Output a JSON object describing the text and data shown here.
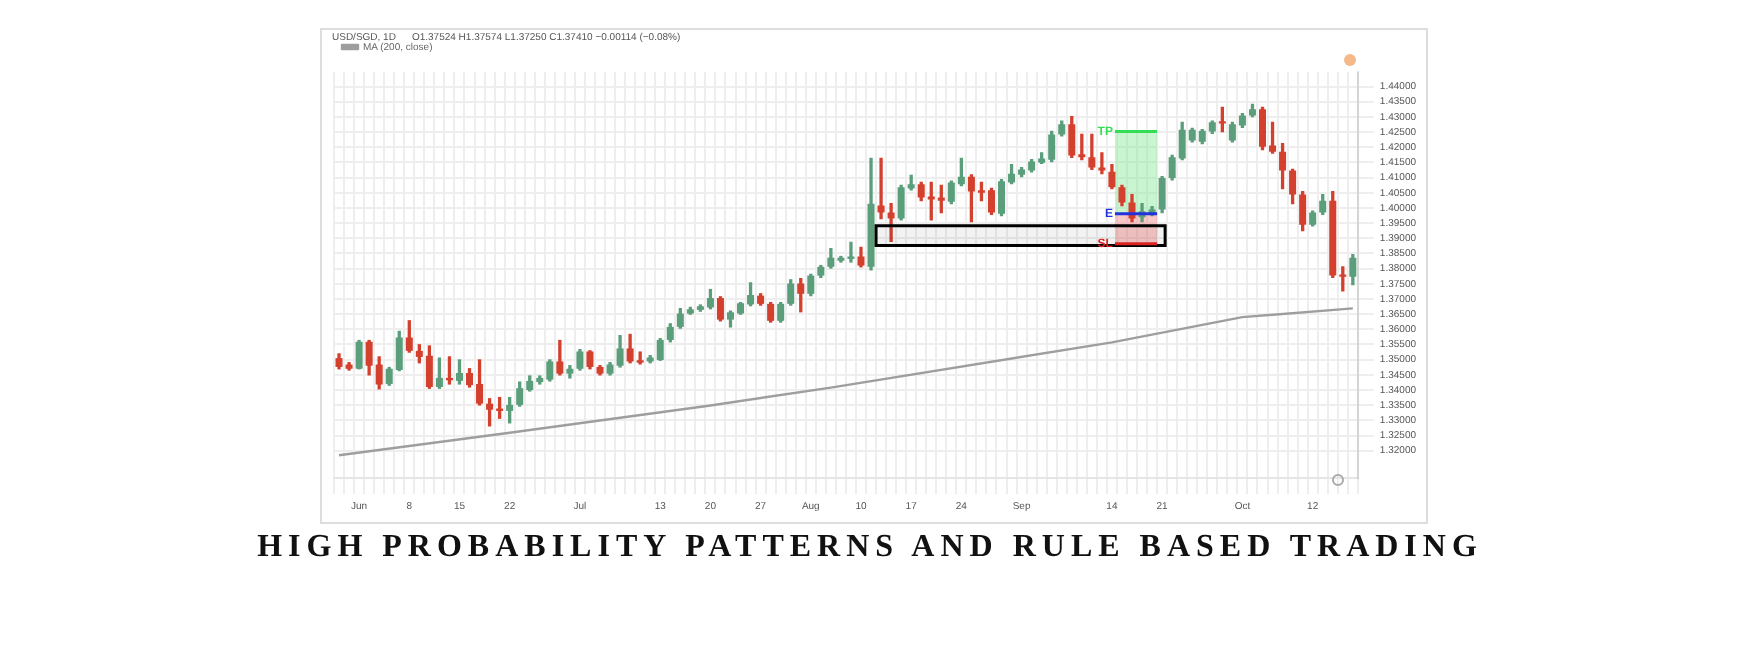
{
  "chart_data": {
    "type": "candlestick",
    "title": "HIGH PROBABILITY PATTERNS AND RULE BASED TRADING",
    "categories": [
      null,
      null,
      "Jun",
      null,
      null,
      null,
      null,
      "8",
      null,
      null,
      null,
      null,
      "15",
      null,
      null,
      null,
      null,
      "22",
      null,
      null,
      null,
      null,
      null,
      null,
      "Jul",
      null,
      null,
      null,
      null,
      null,
      null,
      null,
      "13",
      null,
      null,
      null,
      null,
      "20",
      null,
      null,
      null,
      null,
      "27",
      null,
      null,
      null,
      null,
      "Aug",
      null,
      null,
      null,
      null,
      "10",
      null,
      null,
      null,
      null,
      "17",
      null,
      null,
      null,
      null,
      "24",
      null,
      null,
      null,
      null,
      null,
      "Sep",
      null,
      null,
      null,
      null,
      null,
      null,
      null,
      null,
      "14",
      null,
      null,
      null,
      null,
      "21",
      null,
      null,
      null,
      null,
      null,
      null,
      null,
      "Oct",
      null,
      null,
      null,
      null,
      null,
      null,
      "12",
      null,
      null,
      null,
      null
    ],
    "ohlc": [
      [
        1.3505,
        1.3519,
        1.347,
        1.3476
      ],
      [
        1.3484,
        1.349,
        1.3466,
        1.347
      ],
      [
        1.347,
        1.3563,
        1.347,
        1.3559
      ],
      [
        1.3559,
        1.3563,
        1.345,
        1.348
      ],
      [
        1.3484,
        1.3509,
        1.3404,
        1.3418
      ],
      [
        1.342,
        1.3474,
        1.3416,
        1.347
      ],
      [
        1.3466,
        1.3593,
        1.3464,
        1.3573
      ],
      [
        1.3573,
        1.3628,
        1.3525,
        1.3529
      ],
      [
        1.3529,
        1.3549,
        1.349,
        1.3509
      ],
      [
        1.3513,
        1.3545,
        1.3406,
        1.341
      ],
      [
        1.341,
        1.3505,
        1.3406,
        1.344
      ],
      [
        1.344,
        1.3509,
        1.342,
        1.3432
      ],
      [
        1.343,
        1.3499,
        1.342,
        1.3456
      ],
      [
        1.3456,
        1.347,
        1.341,
        1.3416
      ],
      [
        1.342,
        1.3499,
        1.3351,
        1.3355
      ],
      [
        1.3355,
        1.3371,
        1.3282,
        1.3335
      ],
      [
        1.3339,
        1.3375,
        1.3307,
        1.3331
      ],
      [
        1.3331,
        1.3375,
        1.3292,
        1.3351
      ],
      [
        1.3351,
        1.3426,
        1.3347,
        1.3406
      ],
      [
        1.34,
        1.3446,
        1.3397,
        1.343
      ],
      [
        1.3426,
        1.3446,
        1.342,
        1.344
      ],
      [
        1.3434,
        1.3499,
        1.343,
        1.3494
      ],
      [
        1.3494,
        1.3563,
        1.345,
        1.3454
      ],
      [
        1.3454,
        1.348,
        1.344,
        1.347
      ],
      [
        1.347,
        1.3533,
        1.3466,
        1.3527
      ],
      [
        1.3527,
        1.3529,
        1.347,
        1.3476
      ],
      [
        1.3476,
        1.348,
        1.345,
        1.3454
      ],
      [
        1.3454,
        1.349,
        1.345,
        1.3484
      ],
      [
        1.348,
        1.3579,
        1.3476,
        1.3537
      ],
      [
        1.3537,
        1.3583,
        1.349,
        1.3494
      ],
      [
        1.3498,
        1.3525,
        1.3486,
        1.349
      ],
      [
        1.3494,
        1.3513,
        1.349,
        1.3507
      ],
      [
        1.3499,
        1.3569,
        1.3498,
        1.3565
      ],
      [
        1.3565,
        1.3618,
        1.3559,
        1.3608
      ],
      [
        1.3608,
        1.3668,
        1.3604,
        1.3652
      ],
      [
        1.3652,
        1.3672,
        1.365,
        1.3666
      ],
      [
        1.3664,
        1.368,
        1.366,
        1.3676
      ],
      [
        1.3672,
        1.3731,
        1.3668,
        1.3703
      ],
      [
        1.3703,
        1.3707,
        1.3628,
        1.3632
      ],
      [
        1.3632,
        1.366,
        1.3608,
        1.3656
      ],
      [
        1.3652,
        1.3688,
        1.365,
        1.3686
      ],
      [
        1.3682,
        1.3753,
        1.3678,
        1.3713
      ],
      [
        1.3711,
        1.3717,
        1.368,
        1.3684
      ],
      [
        1.3684,
        1.3688,
        1.3624,
        1.3628
      ],
      [
        1.3628,
        1.3688,
        1.3624,
        1.3684
      ],
      [
        1.3684,
        1.3763,
        1.368,
        1.3751
      ],
      [
        1.3751,
        1.3767,
        1.3658,
        1.3717
      ],
      [
        1.3717,
        1.3781,
        1.3711,
        1.3777
      ],
      [
        1.3777,
        1.381,
        1.3771,
        1.3806
      ],
      [
        1.3806,
        1.3866,
        1.3802,
        1.3836
      ],
      [
        1.3826,
        1.384,
        1.3822,
        1.3836
      ],
      [
        1.3832,
        1.3886,
        1.3822,
        1.384
      ],
      [
        1.384,
        1.387,
        1.3806,
        1.381
      ],
      [
        1.3806,
        1.4163,
        1.3796,
        1.4014
      ],
      [
        1.4008,
        1.4163,
        1.3965,
        1.3985
      ],
      [
        1.3985,
        1.4014,
        1.389,
        1.3965
      ],
      [
        1.3965,
        1.4074,
        1.3961,
        1.4068
      ],
      [
        1.4064,
        1.4107,
        1.406,
        1.4078
      ],
      [
        1.4078,
        1.4084,
        1.4024,
        1.4034
      ],
      [
        1.4038,
        1.4084,
        1.3961,
        1.4028
      ],
      [
        1.4034,
        1.4074,
        1.3985,
        1.4024
      ],
      [
        1.402,
        1.4088,
        1.4014,
        1.4084
      ],
      [
        1.4078,
        1.4163,
        1.4074,
        1.4103
      ],
      [
        1.4103,
        1.4109,
        1.3955,
        1.4054
      ],
      [
        1.4058,
        1.4084,
        1.4024,
        1.405
      ],
      [
        1.4058,
        1.4064,
        1.3979,
        1.3985
      ],
      [
        1.3981,
        1.4093,
        1.3975,
        1.4088
      ],
      [
        1.4084,
        1.4143,
        1.408,
        1.4113
      ],
      [
        1.4109,
        1.4133,
        1.4103,
        1.4127
      ],
      [
        1.4123,
        1.4159,
        1.4119,
        1.4153
      ],
      [
        1.4149,
        1.4181,
        1.4147,
        1.4163
      ],
      [
        1.4159,
        1.4252,
        1.4153,
        1.4242
      ],
      [
        1.4242,
        1.4286,
        1.4238,
        1.4276
      ],
      [
        1.4276,
        1.4301,
        1.4167,
        1.4173
      ],
      [
        1.4177,
        1.4242,
        1.4159,
        1.4167
      ],
      [
        1.4167,
        1.4242,
        1.4127,
        1.4133
      ],
      [
        1.4133,
        1.4181,
        1.4113,
        1.4123
      ],
      [
        1.4119,
        1.4143,
        1.4064,
        1.4068
      ],
      [
        1.4068,
        1.4074,
        1.4008,
        1.4018
      ],
      [
        1.4018,
        1.4044,
        1.3955,
        1.3965
      ],
      [
        1.3969,
        1.4014,
        1.3955,
        1.3989
      ],
      [
        1.3981,
        1.4004,
        1.3975,
        1.3995
      ],
      [
        1.3995,
        1.4103,
        1.3985,
        1.4099
      ],
      [
        1.4099,
        1.4173,
        1.4093,
        1.4167
      ],
      [
        1.4163,
        1.4282,
        1.4159,
        1.4258
      ],
      [
        1.4222,
        1.4262,
        1.4218,
        1.4258
      ],
      [
        1.4218,
        1.4258,
        1.4212,
        1.4254
      ],
      [
        1.4252,
        1.4286,
        1.4246,
        1.4282
      ],
      [
        1.4286,
        1.4331,
        1.4252,
        1.4278
      ],
      [
        1.4222,
        1.4282,
        1.4218,
        1.4276
      ],
      [
        1.4272,
        1.4311,
        1.4266,
        1.4305
      ],
      [
        1.4305,
        1.4341,
        1.4301,
        1.4325
      ],
      [
        1.4325,
        1.4331,
        1.4192,
        1.4202
      ],
      [
        1.4206,
        1.4282,
        1.4181,
        1.4185
      ],
      [
        1.4185,
        1.4212,
        1.4064,
        1.4123
      ],
      [
        1.4123,
        1.4127,
        1.4014,
        1.4044
      ],
      [
        1.4044,
        1.4054,
        1.3925,
        1.3945
      ],
      [
        1.3945,
        1.3989,
        1.3941,
        1.3985
      ],
      [
        1.3985,
        1.4044,
        1.3979,
        1.4024
      ],
      [
        1.4024,
        1.4054,
        1.3771,
        1.3777
      ],
      [
        1.3781,
        1.3806,
        1.3727,
        1.3773
      ],
      [
        1.3773,
        1.3846,
        1.3747,
        1.3836
      ]
    ],
    "series": [
      {
        "type": "line",
        "name": "MA (200, close)",
        "color": "#9e9e9e",
        "values": [
          1.3185,
          null,
          null,
          null,
          null,
          null,
          null,
          null,
          null,
          null,
          null,
          null,
          null,
          null,
          null,
          null,
          null,
          1.3259,
          null,
          null,
          null,
          null,
          null,
          null,
          null,
          null,
          null,
          null,
          null,
          null,
          null,
          null,
          null,
          null,
          null,
          null,
          null,
          1.3349,
          null,
          null,
          null,
          null,
          null,
          null,
          null,
          null,
          null,
          null,
          null,
          1.3408,
          null,
          null,
          null,
          null,
          null,
          null,
          null,
          null,
          null,
          null,
          null,
          null,
          null,
          null,
          null,
          null,
          null,
          null,
          null,
          null,
          null,
          null,
          null,
          null,
          null,
          null,
          null,
          1.3557,
          null,
          null,
          null,
          null,
          null,
          null,
          null,
          null,
          null,
          null,
          null,
          null,
          1.364,
          null,
          null,
          null,
          null,
          null,
          null,
          null,
          null,
          null,
          null,
          1.3669
        ]
      }
    ],
    "ylim": [
      1.311,
      1.4448
    ],
    "yticks": [
      {
        "value": 1.32,
        "label": "1.32000"
      },
      {
        "value": 1.325,
        "label": "1.32500"
      },
      {
        "value": 1.33,
        "label": "1.33000"
      },
      {
        "value": 1.335,
        "label": "1.33500"
      },
      {
        "value": 1.34,
        "label": "1.34000"
      },
      {
        "value": 1.345,
        "label": "1.34500"
      },
      {
        "value": 1.35,
        "label": "1.35000"
      },
      {
        "value": 1.355,
        "label": "1.35500"
      },
      {
        "value": 1.36,
        "label": "1.36000"
      },
      {
        "value": 1.365,
        "label": "1.36500"
      },
      {
        "value": 1.37,
        "label": "1.37000"
      },
      {
        "value": 1.375,
        "label": "1.37500"
      },
      {
        "value": 1.38,
        "label": "1.38000"
      },
      {
        "value": 1.385,
        "label": "1.38500"
      },
      {
        "value": 1.39,
        "label": "1.39000"
      },
      {
        "value": 1.395,
        "label": "1.39500"
      },
      {
        "value": 1.4,
        "label": "1.40000"
      },
      {
        "value": 1.405,
        "label": "1.40500"
      },
      {
        "value": 1.41,
        "label": "1.41000"
      },
      {
        "value": 1.415,
        "label": "1.41500"
      },
      {
        "value": 1.42,
        "label": "1.42000"
      },
      {
        "value": 1.425,
        "label": "1.42500"
      },
      {
        "value": 1.43,
        "label": "1.43000"
      },
      {
        "value": 1.435,
        "label": "1.43500"
      },
      {
        "value": 1.44,
        "label": "1.44000"
      }
    ],
    "bands": [
      {
        "axis": "y",
        "from": 1.3876,
        "to": 1.3941,
        "color": "#000000"
      },
      {
        "axis": "y",
        "from": 1.3981,
        "to": 1.4252,
        "color": "#78e68c"
      },
      {
        "axis": "y",
        "from": 1.3882,
        "to": 1.3981,
        "color": "#f07878"
      }
    ],
    "ref_lines": [
      {
        "axis": "y",
        "value": 1.4252,
        "label": "TP",
        "color": "#33dd55"
      },
      {
        "axis": "y",
        "value": 1.3981,
        "label": "E",
        "color": "#2233dd"
      },
      {
        "axis": "y",
        "value": 1.3882,
        "label": "SL",
        "color": "#dd2222"
      }
    ],
    "annotations": [
      "USD/SGD, 1D",
      "O1.37524 H1.37574 L1.37250 C1.37410 −0.00114 (−0.08%)"
    ],
    "grid": true,
    "legend": "top left"
  }
}
